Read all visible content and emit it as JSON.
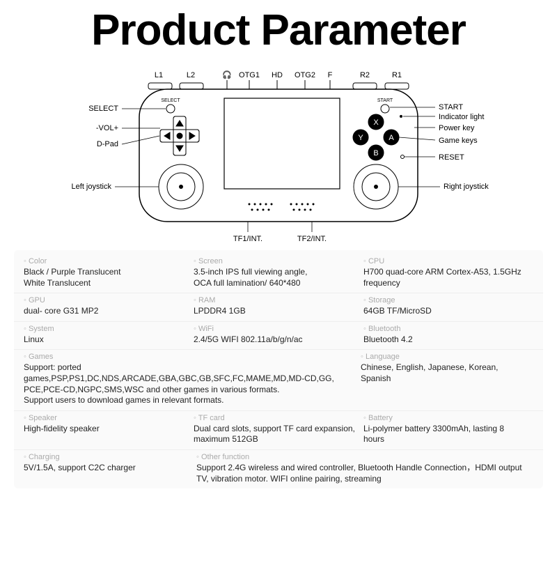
{
  "title": "Product Parameter",
  "diagram": {
    "top_labels": [
      "L1",
      "L2",
      "🎧",
      "OTG1",
      "HD",
      "OTG2",
      "F",
      "R2",
      "R1"
    ],
    "left_callouts": [
      "SELECT",
      "-VOL+",
      "D-Pad",
      "Left joystick"
    ],
    "right_callouts": [
      "START",
      "Indicator light",
      "Power key",
      "Game keys",
      "RESET",
      "Right joystick"
    ],
    "bottom_labels": [
      "TF1/INT.",
      "TF2/INT."
    ],
    "buttons": {
      "top": "X",
      "left": "Y",
      "right": "A",
      "bottom": "B"
    },
    "face_text": {
      "select": "SELECT",
      "start": "START"
    }
  },
  "specs": {
    "color": {
      "label": "Color",
      "value": "Black / Purple Translucent\nWhite Translucent"
    },
    "screen": {
      "label": "Screen",
      "value": "3.5-inch IPS full viewing angle,\nOCA full lamination/ 640*480"
    },
    "cpu": {
      "label": "CPU",
      "value": "H700 quad-core ARM Cortex-A53, 1.5GHz frequency"
    },
    "gpu": {
      "label": "GPU",
      "value": "dual- core G31 MP2"
    },
    "ram": {
      "label": "RAM",
      "value": "LPDDR4  1GB"
    },
    "storage": {
      "label": "Storage",
      "value": "64GB TF/MicroSD"
    },
    "system": {
      "label": "System",
      "value": "Linux"
    },
    "wifi": {
      "label": "WiFi",
      "value": "2.4/5G WIFI 802.11a/b/g/n/ac"
    },
    "bluetooth": {
      "label": "Bluetooth",
      "value": "Bluetooth 4.2"
    },
    "games": {
      "label": "Games",
      "value": "Support: ported games,PSP,PS1,DC,NDS,ARCADE,GBA,GBC,GB,SFC,FC,MAME,MD,MD-CD,GG,\nPCE,PCE-CD,NGPC,SMS,WSC and other games in various formats.\nSupport users to download games in relevant formats."
    },
    "language": {
      "label": "Language",
      "value": "Chinese, English, Japanese, Korean, Spanish"
    },
    "speaker": {
      "label": "Speaker",
      "value": "High-fidelity speaker"
    },
    "tfcard": {
      "label": "TF card",
      "value": "Dual card slots, support TF card expansion, maximum 512GB"
    },
    "battery": {
      "label": "Battery",
      "value": "Li-polymer battery 3300mAh, lasting 8 hours"
    },
    "charging": {
      "label": "Charging",
      "value": "5V/1.5A, support C2C charger"
    },
    "other": {
      "label": "Other function",
      "value": "Support 2.4G wireless and wired controller, Bluetooth Handle Connection，HDMI output TV, vibration motor. WIFI online pairing, streaming"
    }
  }
}
